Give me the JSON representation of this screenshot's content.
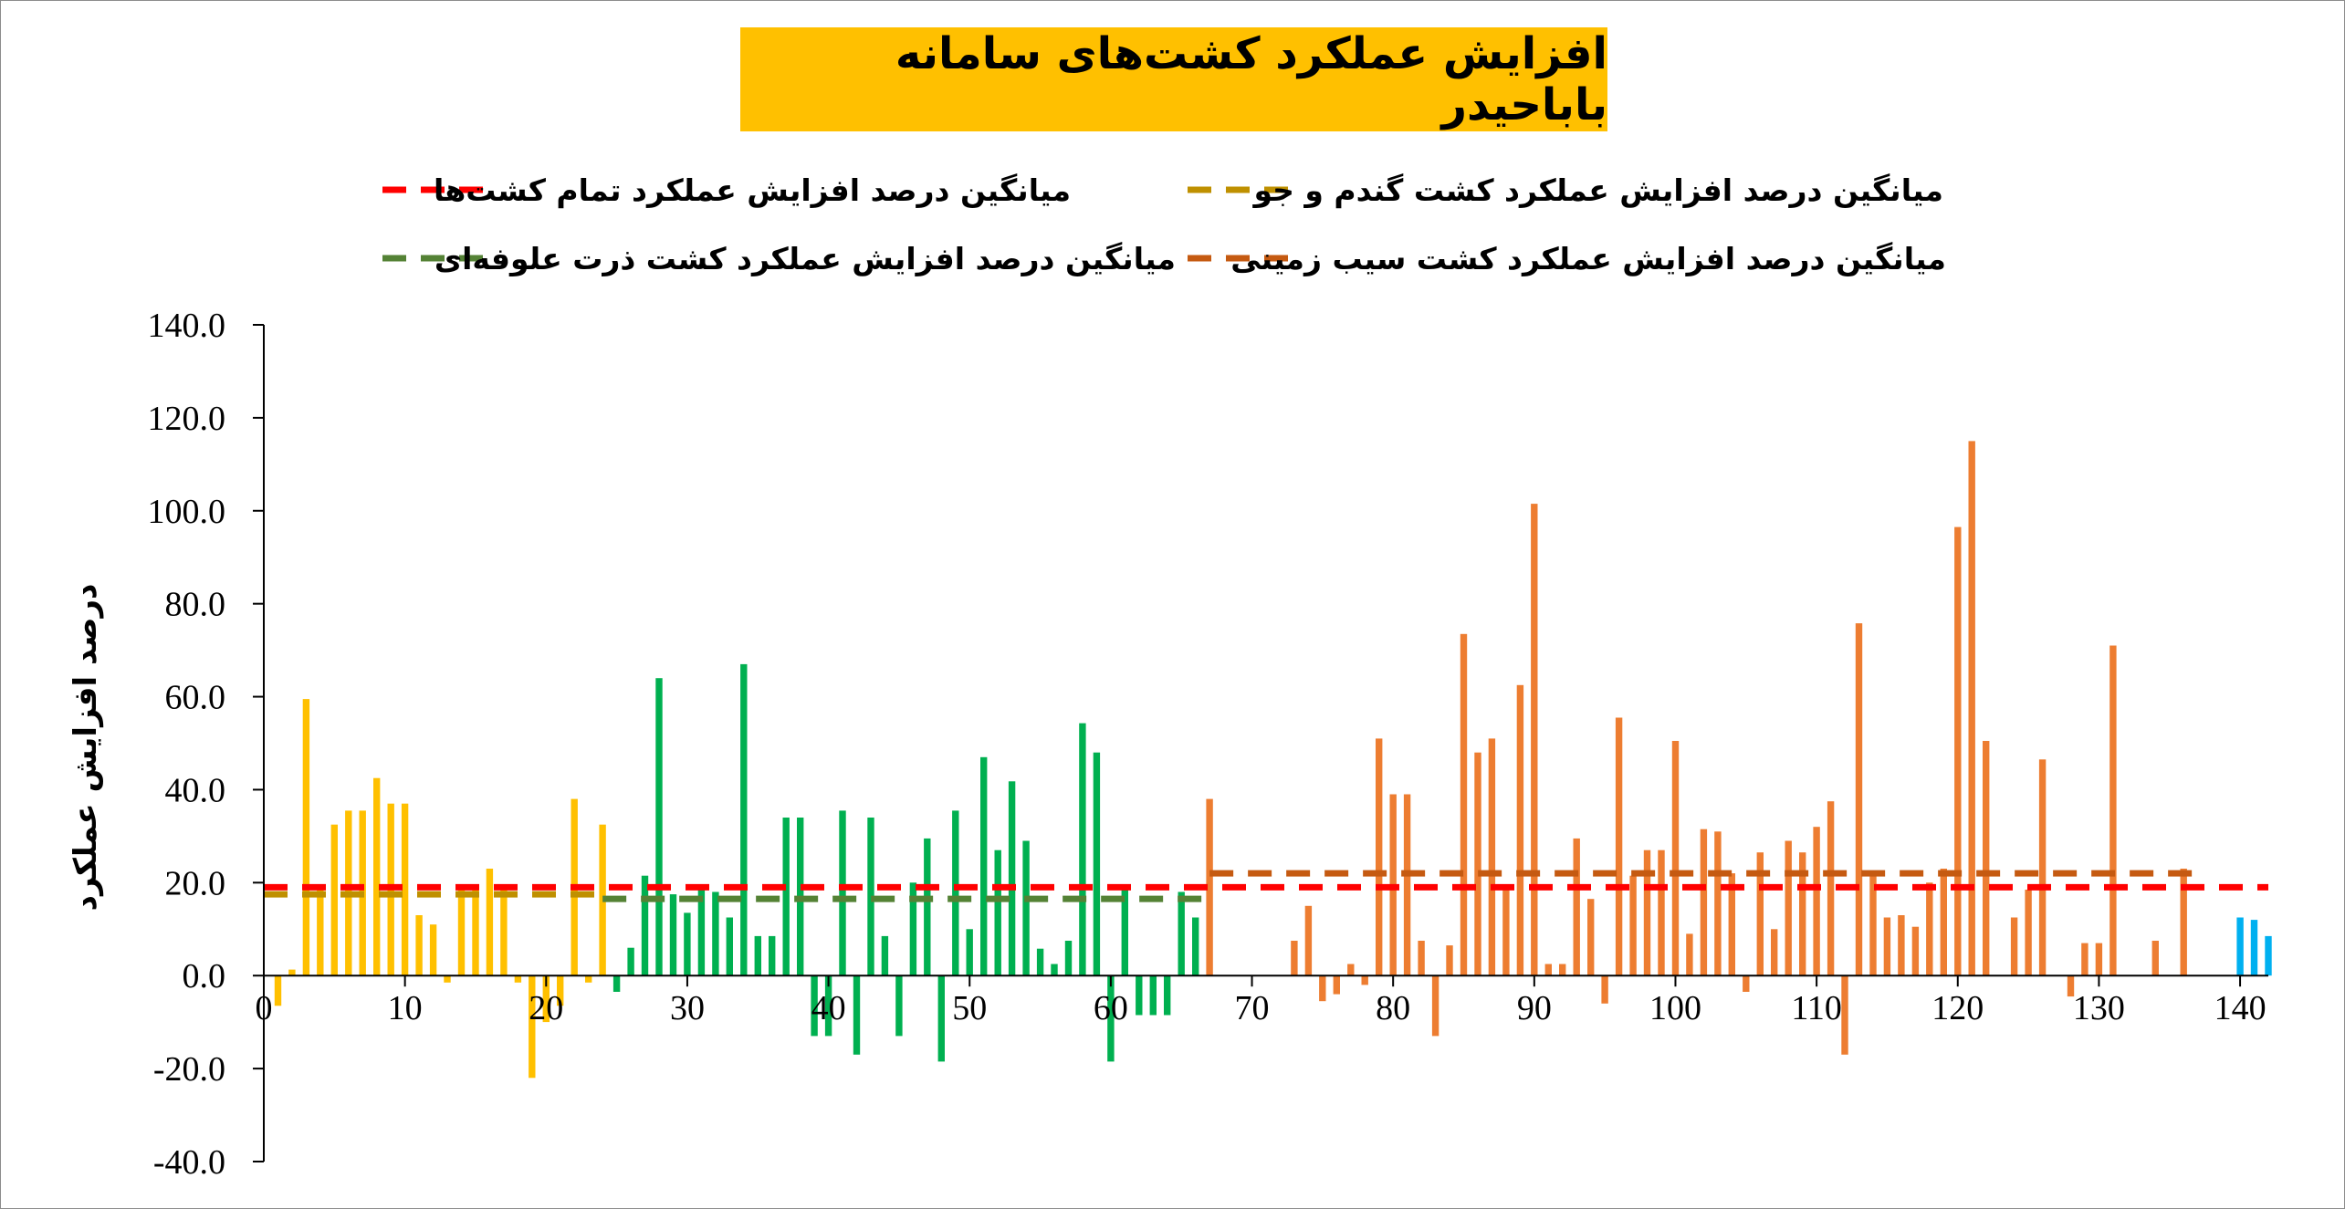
{
  "chart_data": {
    "type": "bar",
    "title": "افزایش عملکرد کشت‌های سامانه باباحیدر",
    "ylabel": "درصد افزایش عملکرد",
    "xlabel": "",
    "xlim": [
      0,
      142
    ],
    "ylim": [
      -40,
      140
    ],
    "x_ticks": [
      0,
      10,
      20,
      30,
      40,
      50,
      60,
      70,
      80,
      90,
      100,
      110,
      120,
      130,
      140
    ],
    "y_ticks": [
      -40,
      -20,
      0,
      20,
      40,
      60,
      80,
      100,
      120,
      140
    ],
    "y_tick_labels": [
      "-40.0",
      "-20.0",
      "0.0",
      "20.0",
      "40.0",
      "60.0",
      "80.0",
      "100.0",
      "120.0",
      "140.0"
    ],
    "grid": false,
    "legend_position": "top",
    "series": [
      {
        "color": "#ffc000",
        "x": [
          1,
          2,
          3,
          4,
          5,
          6,
          7,
          8,
          9,
          10,
          11,
          12,
          13,
          14,
          15,
          16,
          17,
          18,
          19,
          20,
          21,
          22,
          23,
          24
        ],
        "values": [
          -6.5,
          1.3,
          59.5,
          18.5,
          32.5,
          35.5,
          35.5,
          42.5,
          37,
          37,
          13,
          11,
          -1.5,
          18.5,
          18.5,
          23,
          19.5,
          -1.5,
          -22,
          -10,
          -6.5,
          38,
          -1.5,
          32.5
        ]
      },
      {
        "color": "#00b050",
        "x": [
          25,
          26,
          27,
          28,
          29,
          30,
          31,
          32,
          33,
          34,
          35,
          36,
          37,
          38,
          39,
          40,
          41,
          42,
          43,
          44,
          45,
          46,
          47,
          48,
          49,
          50,
          51,
          52,
          53,
          54,
          55,
          56,
          57,
          58,
          59,
          60,
          61,
          62,
          63,
          64,
          65,
          66
        ],
        "values": [
          -3.5,
          6,
          21.5,
          64,
          17.5,
          13.5,
          18.5,
          18,
          12.5,
          67,
          8.5,
          8.5,
          34,
          34,
          -13,
          -13,
          35.5,
          -17,
          34,
          8.5,
          -13,
          20,
          29.5,
          -18.5,
          35.5,
          10,
          47,
          27,
          41.8,
          29,
          5.8,
          2.5,
          7.5,
          54.3,
          48,
          -18.5,
          19.5,
          -8.5,
          -8.5,
          -8.5,
          18,
          12.5
        ]
      },
      {
        "color": "#ed7d31",
        "x": [
          67,
          73,
          74,
          75,
          76,
          77,
          78,
          79,
          80,
          81,
          82,
          83,
          84,
          85,
          86,
          87,
          88,
          89,
          90,
          91,
          92,
          93,
          94,
          95,
          96,
          97,
          98,
          99,
          100,
          101,
          102,
          103,
          104,
          105,
          106,
          107,
          108,
          109,
          110,
          111,
          112,
          113,
          114,
          115,
          116,
          117,
          118,
          119,
          120,
          121,
          122,
          124,
          125,
          126,
          128,
          129,
          130,
          131,
          134,
          136
        ],
        "values": [
          38,
          7.5,
          15,
          -5.5,
          -4,
          2.5,
          -2,
          51,
          39,
          39,
          7.5,
          -13,
          6.5,
          73.5,
          48,
          51,
          19.5,
          62.5,
          101.5,
          2.5,
          2.5,
          29.5,
          16.5,
          -6,
          55.5,
          21.5,
          27,
          27,
          50.5,
          9,
          31.5,
          31,
          22,
          -3.5,
          26.5,
          10,
          29,
          26.5,
          32,
          37.5,
          -17,
          75.8,
          22.5,
          12.5,
          13,
          10.5,
          20,
          23,
          96.5,
          115,
          50.5,
          12.5,
          18.5,
          46.5,
          -4.5,
          7,
          7,
          71,
          7.5,
          23
        ]
      },
      {
        "color": "#00b0f0",
        "x": [
          140,
          141,
          142
        ],
        "values": [
          12.5,
          12,
          8.5
        ]
      }
    ],
    "reference_lines": [
      {
        "color": "#ff0000",
        "y": 19,
        "x_range": [
          0,
          142
        ],
        "legend": "میانگین درصد افزایش عملکرد تمام کشت‌ها"
      },
      {
        "color": "#bf9000",
        "y": 17.5,
        "x_range": [
          0,
          24
        ],
        "legend": "میانگین درصد افزایش عملکرد کشت گندم و جو"
      },
      {
        "color": "#548235",
        "y": 16.5,
        "x_range": [
          24,
          66.5
        ],
        "legend": "میانگین درصد افزایش عملکرد کشت ذرت علوفه‌ای"
      },
      {
        "color": "#c55a11",
        "y": 22,
        "x_range": [
          67,
          137
        ],
        "legend": "میانگین درصد افزایش عملکرد کشت سیب زمینی"
      }
    ]
  }
}
